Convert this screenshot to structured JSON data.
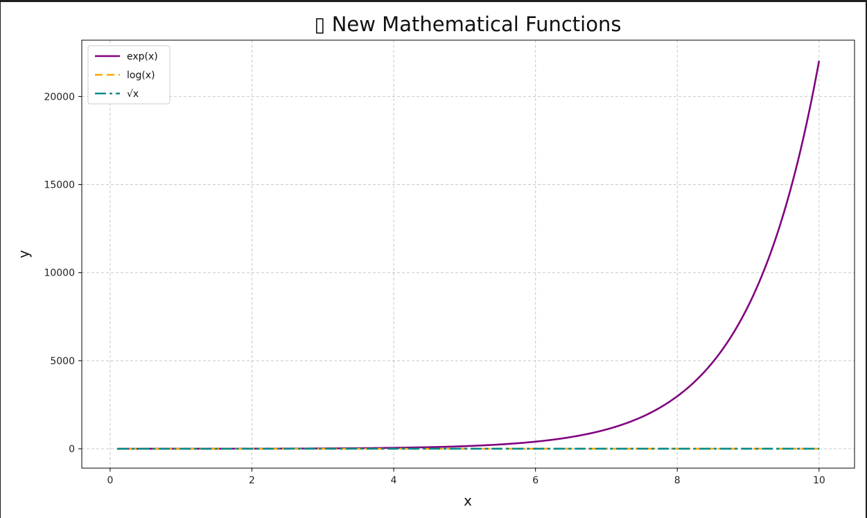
{
  "chart_data": {
    "type": "line",
    "title": "▯ New Mathematical Functions",
    "xlabel": "x",
    "ylabel": "y",
    "xlim": [
      -0.4,
      10.5
    ],
    "ylim": [
      -1100,
      23200
    ],
    "xticks": [
      0,
      2,
      4,
      6,
      8,
      10
    ],
    "yticks": [
      0,
      5000,
      10000,
      15000,
      20000
    ],
    "grid": true,
    "legend_position": "top-left",
    "series": [
      {
        "name": "exp(x)",
        "function": "exp",
        "color": "#800080",
        "line_style": "solid",
        "x": [
          0.1,
          1,
          2,
          3,
          4,
          5,
          6,
          6.5,
          7,
          7.5,
          8,
          8.5,
          9,
          9.5,
          10
        ],
        "y": [
          1.1,
          2.7,
          7.4,
          20.1,
          54.6,
          148.4,
          403.4,
          665.1,
          1096.6,
          1808.0,
          2981.0,
          4914.8,
          8103.1,
          13359.7,
          22026.5
        ]
      },
      {
        "name": "log(x)",
        "function": "log",
        "color": "#FFA500",
        "line_style": "dashed",
        "x": [
          0.1,
          1,
          2,
          4,
          6,
          8,
          10
        ],
        "y": [
          -2.3,
          0,
          0.69,
          1.39,
          1.79,
          2.08,
          2.3
        ]
      },
      {
        "name": "√x",
        "function": "sqrt",
        "color": "#008B8B",
        "line_style": "dashdot",
        "x": [
          0.1,
          1,
          2,
          4,
          6,
          8,
          10
        ],
        "y": [
          0.32,
          1,
          1.41,
          2,
          2.45,
          2.83,
          3.16
        ]
      }
    ]
  }
}
